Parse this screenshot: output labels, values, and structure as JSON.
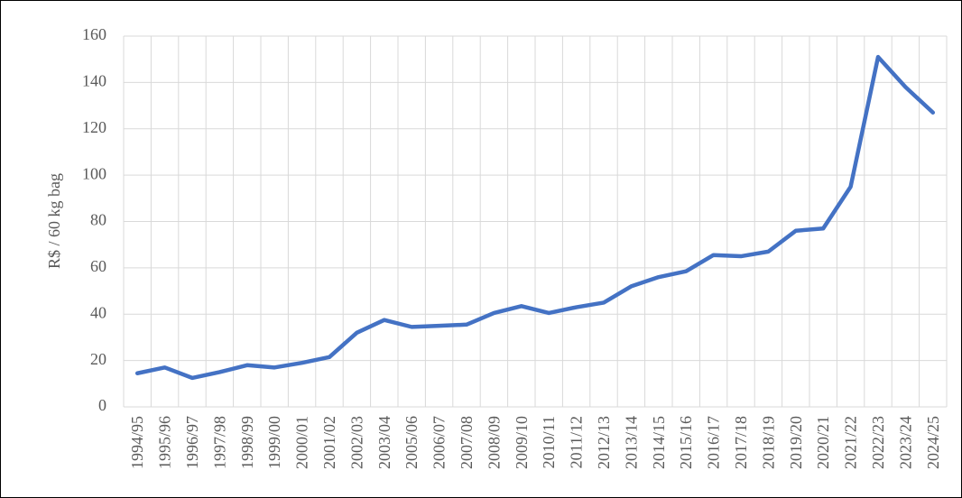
{
  "chart_data": {
    "type": "line",
    "y_label": "R$ / 60 kg bag",
    "categories": [
      "1994/95",
      "1995/96",
      "1996/97",
      "1997/98",
      "1998/99",
      "1999/00",
      "2000/01",
      "2001/02",
      "2002/03",
      "2003/04",
      "2005/06",
      "2006/07",
      "2007/08",
      "2008/09",
      "2009/10",
      "2010/11",
      "2011/12",
      "2012/13",
      "2013/14",
      "2014/15",
      "2015/16",
      "2016/17",
      "2017/18",
      "2018/19",
      "2019/20",
      "2020/21",
      "2021/22",
      "2022/23",
      "2023/24",
      "2024/25"
    ],
    "series": [
      {
        "color": "#4472c4",
        "values": [
          14.5,
          17,
          12.5,
          15,
          18,
          17,
          19,
          21.5,
          32,
          37.5,
          34.5,
          35,
          35.5,
          40.5,
          43.5,
          40.5,
          43,
          45,
          52,
          56,
          58.5,
          65.5,
          65,
          67,
          76,
          77,
          95,
          151,
          138,
          127
        ]
      }
    ],
    "ylim": [
      0,
      160
    ],
    "yticks": [
      0,
      20,
      40,
      60,
      80,
      100,
      120,
      140,
      160
    ],
    "grid": true
  }
}
